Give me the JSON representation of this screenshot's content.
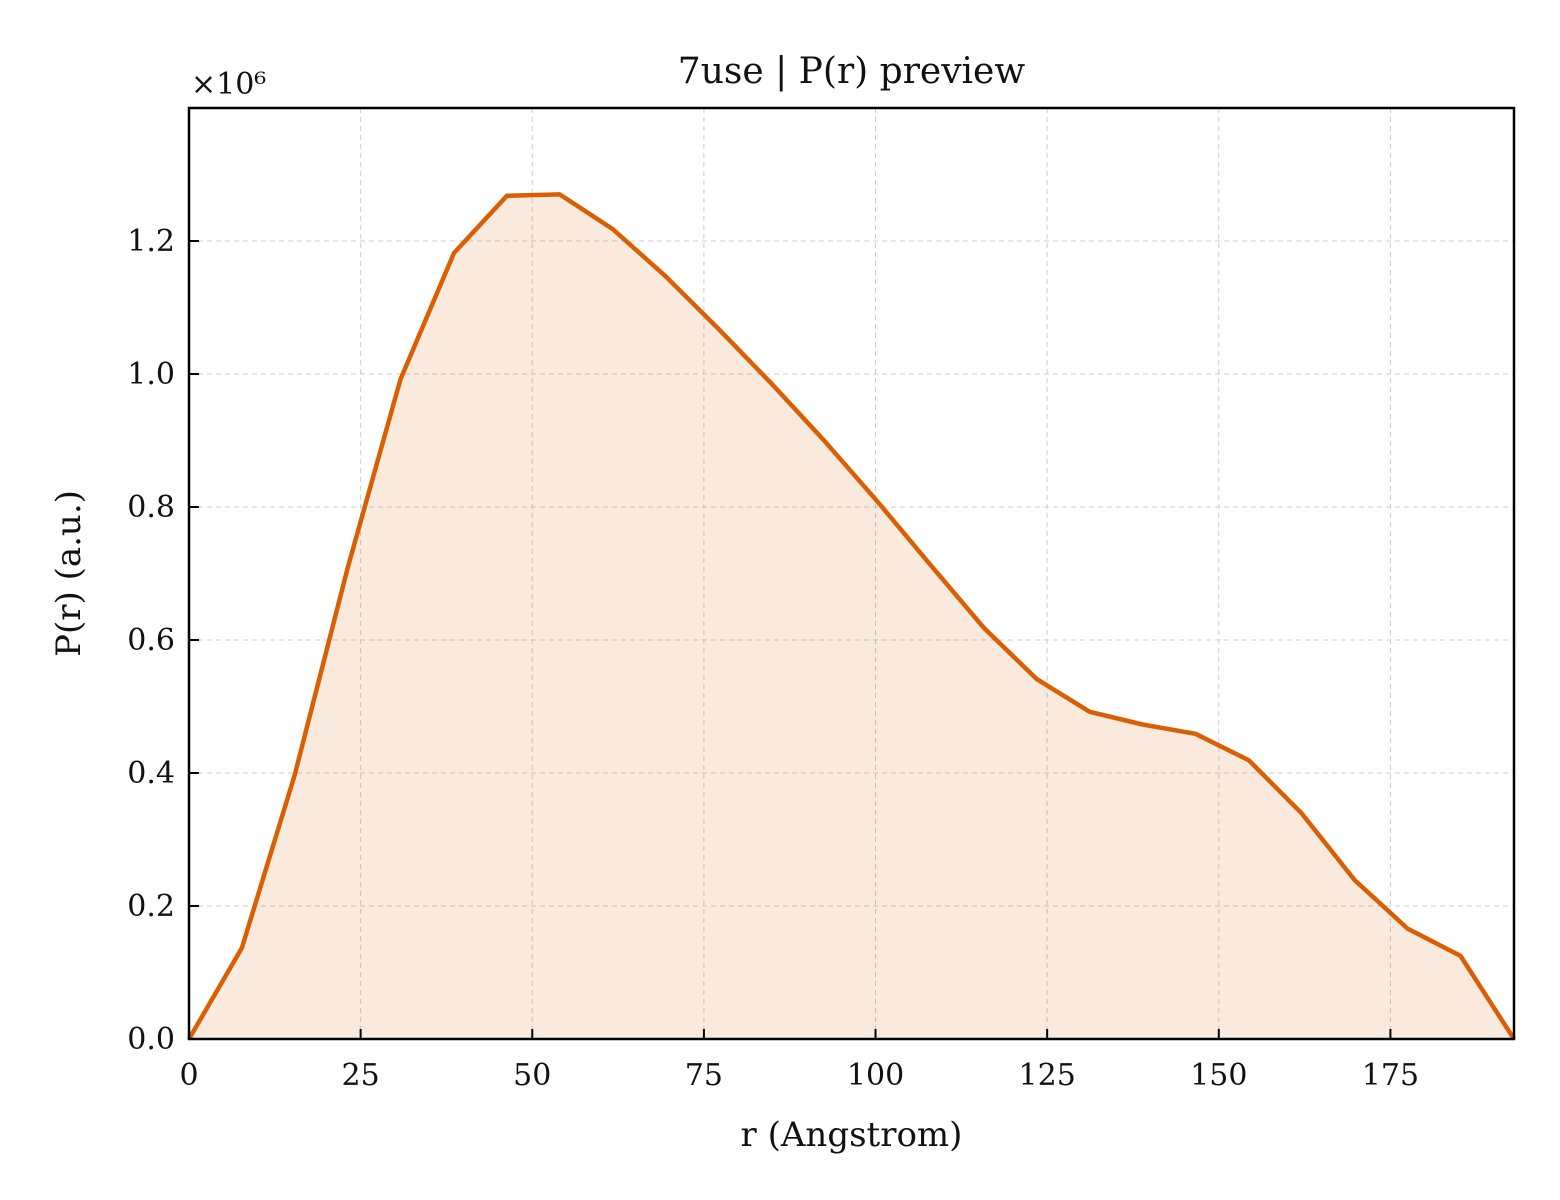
{
  "chart_data": {
    "type": "area",
    "title": "7use | P(r) preview",
    "xlabel": "r (Angstrom)",
    "ylabel": "P(r) (a.u.)",
    "y_offset_label": "×10⁶",
    "y_scale": 1000000,
    "xlim": [
      0,
      193
    ],
    "ylim": [
      0,
      1.4
    ],
    "x_ticks": [
      0,
      25,
      50,
      75,
      100,
      125,
      150,
      175
    ],
    "x_tick_labels": [
      "0",
      "25",
      "50",
      "75",
      "100",
      "125",
      "150",
      "175"
    ],
    "y_ticks": [
      0.0,
      0.2,
      0.4,
      0.6,
      0.8,
      1.0,
      1.2
    ],
    "y_tick_labels": [
      "0.0",
      "0.2",
      "0.4",
      "0.6",
      "0.8",
      "1.0",
      "1.2"
    ],
    "grid": true,
    "series": [
      {
        "color": "#d95f02",
        "fill_color": "#d95f02",
        "fill_opacity": 0.13,
        "x": [
          0,
          7.7,
          15.4,
          23.1,
          30.8,
          38.6,
          46.3,
          54.0,
          61.7,
          69.4,
          77.2,
          84.9,
          92.6,
          100.3,
          108.0,
          115.8,
          123.5,
          131.2,
          138.9,
          146.6,
          154.4,
          162.1,
          169.8,
          177.5,
          185.2,
          193.0
        ],
        "y": [
          0.0,
          0.137,
          0.397,
          0.708,
          0.992,
          1.182,
          1.268,
          1.27,
          1.218,
          1.147,
          1.067,
          0.985,
          0.899,
          0.808,
          0.713,
          0.618,
          0.541,
          0.492,
          0.473,
          0.459,
          0.419,
          0.339,
          0.239,
          0.166,
          0.125,
          0.0
        ]
      }
    ]
  }
}
